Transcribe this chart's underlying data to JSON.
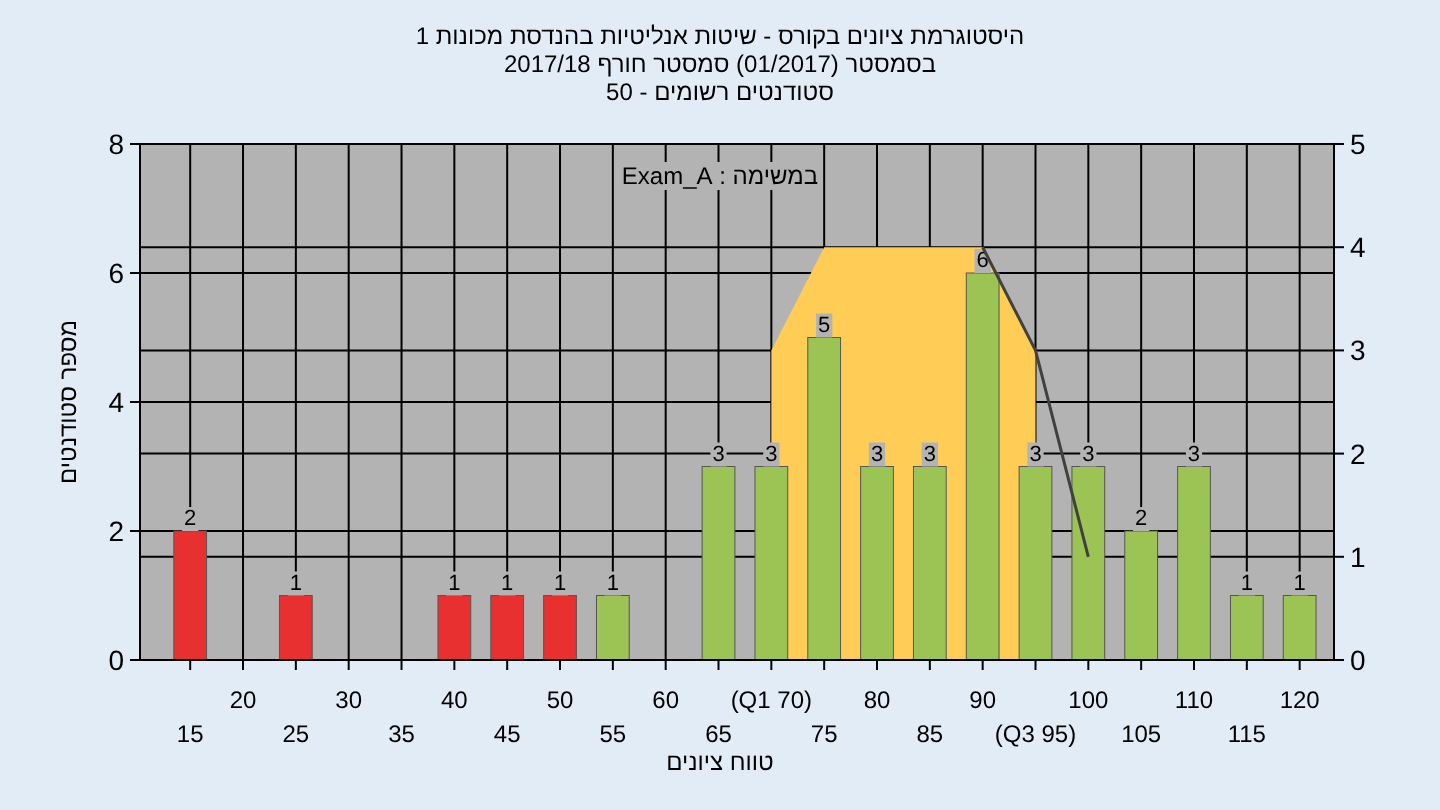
{
  "chart_data": {
    "type": "bar",
    "title": "היסטוגרמת ציונים בקורס - שיטות אנליטיות בהנדסת מכונות 1",
    "subtitle": "בסמסטר (01/2017) סמסטר חורף 2017/18",
    "annotations": [
      "סטודנטים רשומים - 50",
      "במשימה : Exam_A"
    ],
    "xlabel": "טווח ציונים",
    "ylabel": "מספר סטודנטים",
    "categories": [
      "15",
      "20",
      "25",
      "30",
      "35",
      "40",
      "45",
      "50",
      "55",
      "60",
      "65",
      "(Q1 70)",
      "75",
      "80",
      "85",
      "90",
      "(Q3 95)",
      "100",
      "105",
      "110",
      "115",
      "120"
    ],
    "series": [
      {
        "type": "area",
        "axis": "y2",
        "color": "#ffcc55",
        "values": [
          null,
          null,
          null,
          null,
          null,
          null,
          null,
          null,
          null,
          null,
          null,
          3,
          4,
          4,
          4,
          4,
          3,
          null,
          null,
          null,
          null,
          null
        ]
      },
      {
        "colors": [
          "#e83030",
          "#e83030",
          "#e83030",
          "#e83030",
          "#e83030",
          "#e83030",
          "#e83030",
          "#e83030",
          "#9cc455",
          "#9cc455",
          "#9cc455",
          "#9cc455",
          "#9cc455",
          "#9cc455",
          "#9cc455",
          "#9cc455",
          "#9cc455",
          "#9cc455",
          "#9cc455",
          "#9cc455",
          "#9cc455",
          "#9cc455"
        ],
        "values": [
          2,
          0,
          1,
          0,
          0,
          1,
          1,
          1,
          1,
          0,
          3,
          3,
          5,
          3,
          3,
          6,
          3,
          3,
          2,
          3,
          1,
          1
        ],
        "value_labels": [
          "2",
          null,
          "1",
          null,
          null,
          "1",
          "1",
          "1",
          "1",
          null,
          "3",
          "3",
          "5",
          "3",
          "3",
          "6",
          "3",
          "3",
          "2",
          "3",
          "1",
          "1"
        ]
      },
      {
        "type": "line",
        "axis": "y2",
        "color": "#404040",
        "values": [
          null,
          null,
          null,
          null,
          null,
          null,
          null,
          null,
          null,
          null,
          null,
          null,
          null,
          null,
          null,
          4,
          3,
          1,
          null,
          null,
          null,
          null
        ]
      }
    ],
    "ylim": [
      0,
      8
    ],
    "yticks": [
      0,
      2,
      4,
      6,
      8
    ],
    "y2lim": [
      0,
      5
    ],
    "y2ticks": [
      0,
      1,
      2,
      3,
      4,
      5
    ],
    "grid": true
  }
}
